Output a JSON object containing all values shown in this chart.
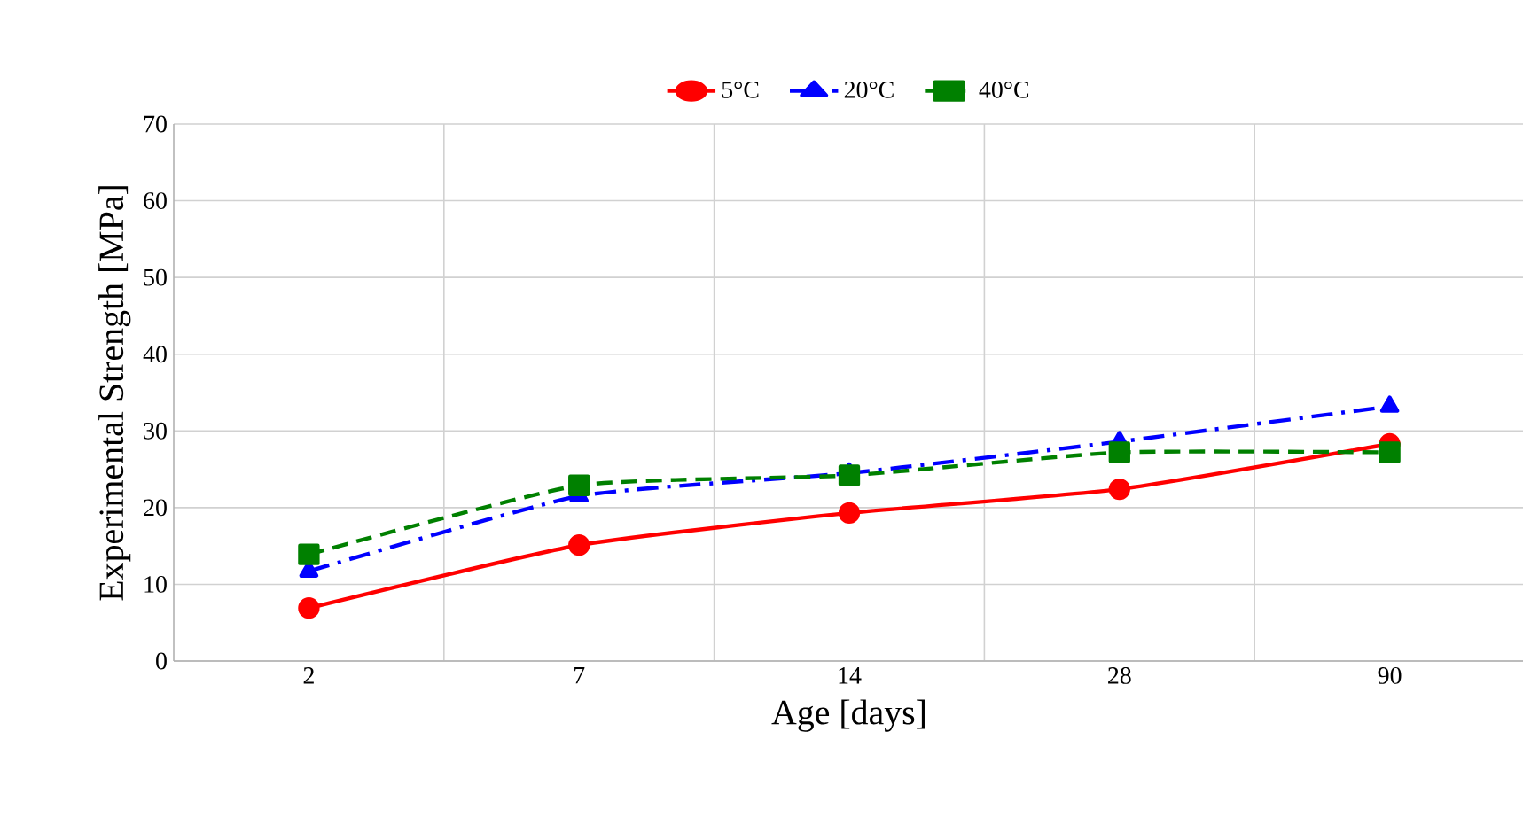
{
  "chart_data": {
    "type": "line",
    "xlabel": "Age [days]",
    "ylabel": "Experimental  Strength [MPa]",
    "categories": [
      "2",
      "7",
      "14",
      "28",
      "90"
    ],
    "series": [
      {
        "name": "5°C",
        "color": "#ff0000",
        "marker": "circle",
        "line_style": "solid",
        "values": [
          6.9,
          15.1,
          19.3,
          22.4,
          28.3
        ]
      },
      {
        "name": "20°C",
        "color": "#0000ff",
        "marker": "triangle",
        "line_style": "dashdot",
        "values": [
          11.7,
          21.5,
          24.5,
          28.6,
          33.2
        ]
      },
      {
        "name": "40°C",
        "color": "#008000",
        "marker": "square",
        "line_style": "dashed",
        "values": [
          13.9,
          22.9,
          24.2,
          27.2,
          27.2
        ]
      }
    ],
    "ylim": [
      0,
      70
    ],
    "yticks": [
      0,
      10,
      20,
      30,
      40,
      50,
      60,
      70
    ],
    "grid": true,
    "legend": "top"
  }
}
